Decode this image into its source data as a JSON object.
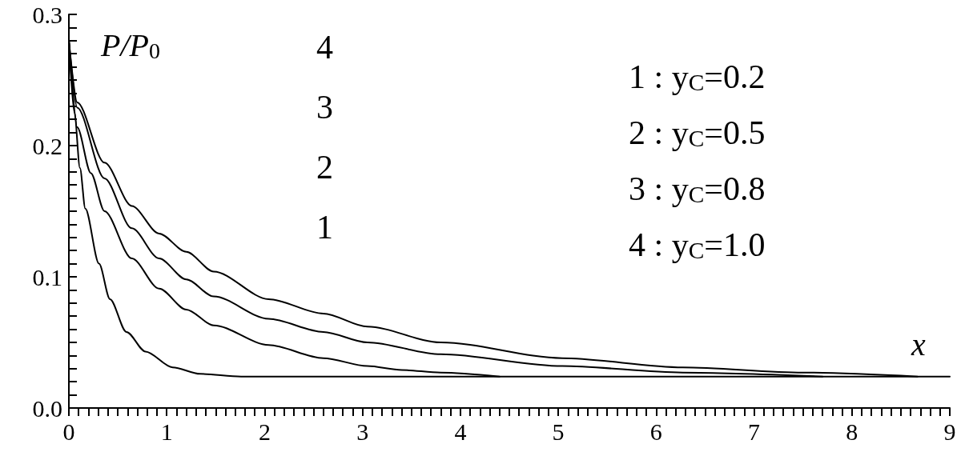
{
  "chart_data": {
    "type": "line",
    "ylabel": "P/P$_{0}$",
    "xlabel": "x",
    "marker": "none",
    "grid": false,
    "xlim": [
      0,
      9
    ],
    "ylim": [
      0,
      0.3
    ],
    "xticks": [
      0,
      {
        "value": 0.1,
        "label": null
      },
      {
        "value": 0.2,
        "label": null
      },
      {
        "value": 0.3,
        "label": null
      },
      {
        "value": 0.4,
        "label": null
      },
      {
        "value": 0.5,
        "label": null
      },
      {
        "value": 0.6,
        "label": null
      },
      {
        "value": 0.7,
        "label": null
      },
      {
        "value": 0.8,
        "label": null
      },
      {
        "value": 0.9,
        "label": null
      },
      1,
      {
        "value": 1.1,
        "label": null
      },
      {
        "value": 1.2,
        "label": null
      },
      {
        "value": 1.3,
        "label": null
      },
      {
        "value": 1.4,
        "label": null
      },
      {
        "value": 1.5,
        "label": null
      },
      {
        "value": 1.6,
        "label": null
      },
      {
        "value": 1.7,
        "label": null
      },
      {
        "value": 1.8,
        "label": null
      },
      {
        "value": 1.9,
        "label": null
      },
      2,
      {
        "value": 2.1,
        "label": null
      },
      {
        "value": 2.2,
        "label": null
      },
      {
        "value": 2.3,
        "label": null
      },
      {
        "value": 2.4,
        "label": null
      },
      {
        "value": 2.5,
        "label": null
      },
      {
        "value": 2.6,
        "label": null
      },
      {
        "value": 2.7,
        "label": null
      },
      {
        "value": 2.8,
        "label": null
      },
      {
        "value": 2.9,
        "label": null
      },
      3,
      {
        "value": 3.1,
        "label": null
      },
      {
        "value": 3.2,
        "label": null
      },
      {
        "value": 3.3,
        "label": null
      },
      {
        "value": 3.4,
        "label": null
      },
      {
        "value": 3.5,
        "label": null
      },
      {
        "value": 3.6,
        "label": null
      },
      {
        "value": 3.7,
        "label": null
      },
      {
        "value": 3.8,
        "label": null
      },
      {
        "value": 3.9,
        "label": null
      },
      4,
      {
        "value": 4.1,
        "label": null
      },
      {
        "value": 4.2,
        "label": null
      },
      {
        "value": 4.3,
        "label": null
      },
      {
        "value": 4.4,
        "label": null
      },
      {
        "value": 4.5,
        "label": null
      },
      {
        "value": 4.6,
        "label": null
      },
      {
        "value": 4.7,
        "label": null
      },
      {
        "value": 4.8,
        "label": null
      },
      {
        "value": 4.9,
        "label": null
      },
      5,
      {
        "value": 5.1,
        "label": null
      },
      {
        "value": 5.2,
        "label": null
      },
      {
        "value": 5.3,
        "label": null
      },
      {
        "value": 5.4,
        "label": null
      },
      {
        "value": 5.5,
        "label": null
      },
      {
        "value": 5.6,
        "label": null
      },
      {
        "value": 5.7,
        "label": null
      },
      {
        "value": 5.8,
        "label": null
      },
      {
        "value": 5.9,
        "label": null
      },
      6,
      {
        "value": 6.1,
        "label": null
      },
      {
        "value": 6.2,
        "label": null
      },
      {
        "value": 6.3,
        "label": null
      },
      {
        "value": 6.4,
        "label": null
      },
      {
        "value": 6.5,
        "label": null
      },
      {
        "value": 6.6,
        "label": null
      },
      {
        "value": 6.7,
        "label": null
      },
      {
        "value": 6.8,
        "label": null
      },
      {
        "value": 6.9,
        "label": null
      },
      7,
      {
        "value": 7.1,
        "label": null
      },
      {
        "value": 7.2,
        "label": null
      },
      {
        "value": 7.3,
        "label": null
      },
      {
        "value": 7.4,
        "label": null
      },
      {
        "value": 7.5,
        "label": null
      },
      {
        "value": 7.6,
        "label": null
      },
      {
        "value": 7.7,
        "label": null
      },
      {
        "value": 7.8,
        "label": null
      },
      {
        "value": 7.9,
        "label": null
      },
      8,
      {
        "value": 8.1,
        "label": null
      },
      {
        "value": 8.2,
        "label": null
      },
      {
        "value": 8.3,
        "label": null
      },
      {
        "value": 8.4,
        "label": null
      },
      {
        "value": 8.5,
        "label": null
      },
      {
        "value": 8.6,
        "label": null
      },
      {
        "value": 8.7,
        "label": null
      },
      {
        "value": 8.8,
        "label": null
      },
      {
        "value": 8.9,
        "label": null
      },
      9
    ],
    "yticks": [
      {
        "value": 0,
        "label": "0.0"
      },
      {
        "value": 0.01,
        "label": null
      },
      {
        "value": 0.02,
        "label": null
      },
      {
        "value": 0.03,
        "label": null
      },
      {
        "value": 0.04,
        "label": null
      },
      {
        "value": 0.05,
        "label": null
      },
      {
        "value": 0.06,
        "label": null
      },
      {
        "value": 0.07,
        "label": null
      },
      {
        "value": 0.08,
        "label": null
      },
      {
        "value": 0.09,
        "label": null
      },
      {
        "value": 0.1,
        "label": "0.1"
      },
      {
        "value": 0.11,
        "label": null
      },
      {
        "value": 0.12,
        "label": null
      },
      {
        "value": 0.13,
        "label": null
      },
      {
        "value": 0.14,
        "label": null
      },
      {
        "value": 0.15,
        "label": null
      },
      {
        "value": 0.16,
        "label": null
      },
      {
        "value": 0.17,
        "label": null
      },
      {
        "value": 0.18,
        "label": null
      },
      {
        "value": 0.19,
        "label": null
      },
      {
        "value": 0.2,
        "label": "0.2"
      },
      {
        "value": 0.21,
        "label": null
      },
      {
        "value": 0.22,
        "label": null
      },
      {
        "value": 0.23,
        "label": null
      },
      {
        "value": 0.24,
        "label": null
      },
      {
        "value": 0.25,
        "label": null
      },
      {
        "value": 0.26,
        "label": null
      },
      {
        "value": 0.27,
        "label": null
      },
      {
        "value": 0.28,
        "label": null
      },
      {
        "value": 0.29,
        "label": null
      },
      {
        "value": 0.3,
        "label": "0.3"
      }
    ],
    "annotations": [
      "4",
      "3",
      "2",
      "1",
      "1 : y$_{C}$=0.2",
      "2 : y$_{C}$=0.5",
      "3 : y$_{C}$=0.8",
      "4 : y$_{C}$=1.0"
    ],
    "series": [
      {
        "color": "#000000",
        "x": [
          0,
          0.057,
          0.113,
          0.168,
          0.308,
          0.42,
          0.588,
          0.783,
          1.06,
          1.34,
          1.76,
          9
        ],
        "values": [
          0.28,
          0.225,
          0.183,
          0.152,
          0.11,
          0.083,
          0.058,
          0.043,
          0.031,
          0.026,
          0.024,
          0.024
        ]
      },
      {
        "color": "#000000",
        "x": [
          0,
          0.085,
          0.225,
          0.364,
          0.643,
          0.922,
          1.2,
          1.48,
          2.04,
          2.6,
          3.05,
          3.4,
          3.8,
          4.4
        ],
        "values": [
          0.28,
          0.214,
          0.179,
          0.15,
          0.114,
          0.091,
          0.075,
          0.063,
          0.048,
          0.038,
          0.032,
          0.029,
          0.027,
          0.024
        ]
      },
      {
        "color": "#000000",
        "x": [
          0,
          0.085,
          0.364,
          0.643,
          0.922,
          1.2,
          1.48,
          2.04,
          2.6,
          3.05,
          3.8,
          5.04,
          6.27,
          7.7
        ],
        "values": [
          0.28,
          0.229,
          0.175,
          0.137,
          0.114,
          0.098,
          0.085,
          0.068,
          0.058,
          0.05,
          0.041,
          0.032,
          0.027,
          0.024
        ]
      },
      {
        "color": "#000000",
        "x": [
          0,
          0.085,
          0.364,
          0.643,
          0.922,
          1.2,
          1.48,
          2.04,
          2.6,
          3.05,
          3.8,
          5.04,
          6.27,
          7.5,
          8.67
        ],
        "values": [
          0.28,
          0.233,
          0.187,
          0.154,
          0.133,
          0.119,
          0.104,
          0.083,
          0.072,
          0.062,
          0.05,
          0.038,
          0.031,
          0.027,
          0.024
        ]
      }
    ]
  }
}
